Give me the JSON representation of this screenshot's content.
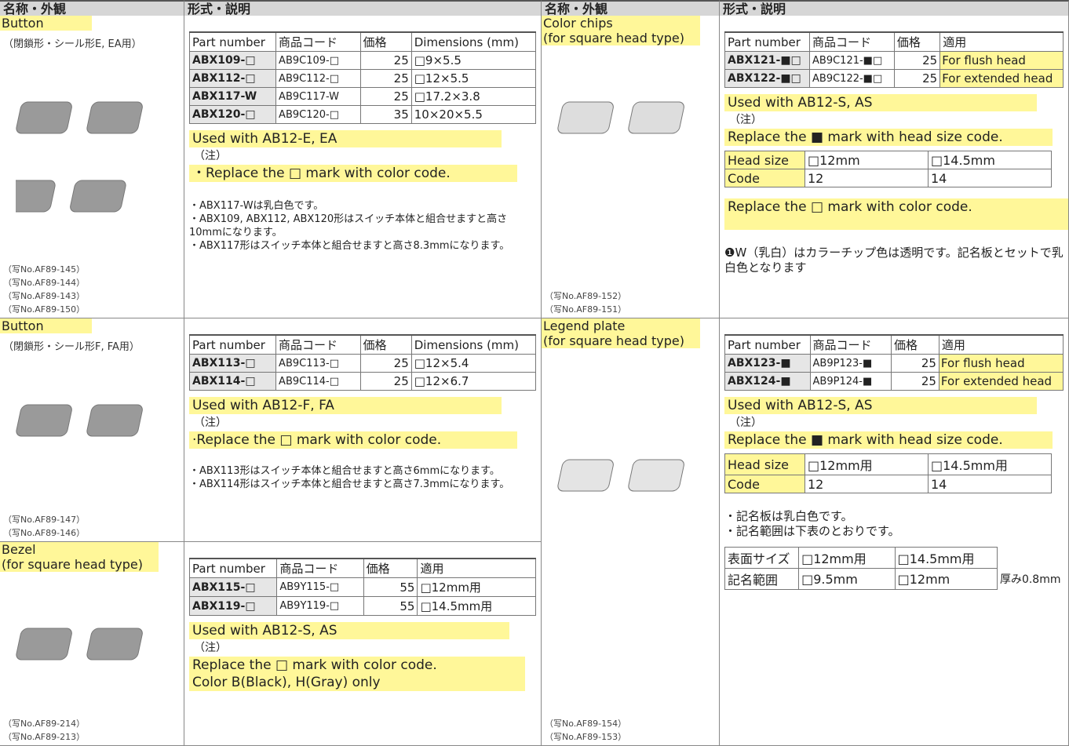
{
  "header": {
    "cols": [
      "名称・外観",
      "形式・説明",
      "名称・外観",
      "形式・説明"
    ]
  },
  "sections": [
    {
      "name": "Button",
      "subtitle": "（閉鎖形・シール形E, EA用）",
      "photos": [
        "（写No.AF89-145）",
        "（写No.AF89-144）",
        "（写No.AF89-143）",
        "（写No.AF89-150）"
      ],
      "table": {
        "header": [
          "Part number",
          "商品コード",
          "価格",
          "Dimensions (mm)"
        ],
        "rows": [
          [
            "ABX109-□",
            "AB9C109-□",
            25,
            "□9×5.5"
          ],
          [
            "ABX112-□",
            "AB9C112-□",
            25,
            "□12×5.5"
          ],
          [
            "ABX117-W",
            "AB9C117-W",
            25,
            "□17.2×3.8"
          ],
          [
            "ABX120-□",
            "AB9C120-□",
            35,
            "10×20×5.5"
          ]
        ]
      },
      "used_with": "Used with AB12-E, EA",
      "note_label": "（注）",
      "highlights": [
        "・Replace the □ mark with color code."
      ],
      "notes": [
        "・ABX117-Wは乳白色です。",
        "・ABX109, ABX112, ABX120形はスイッチ本体と組合せますと高さ10mmになります。",
        "・ABX117形はスイッチ本体と組合せますと高さ8.3mmになります。"
      ]
    },
    {
      "name": "Button",
      "subtitle": "（閉鎖形・シール形F, FA用）",
      "photos": [
        "（写No.AF89-147）",
        "（写No.AF89-146）"
      ],
      "table": {
        "header": [
          "Part number",
          "商品コード",
          "価格",
          "Dimensions (mm)"
        ],
        "rows": [
          [
            "ABX113-□",
            "AB9C113-□",
            25,
            "□12×5.4"
          ],
          [
            "ABX114-□",
            "AB9C114-□",
            25,
            "□12×6.7"
          ]
        ]
      },
      "used_with": "Used with AB12-F, FA",
      "note_label": "（注）",
      "highlights": [
        "·Replace the □ mark with color code."
      ],
      "notes": [
        "・ABX113形はスイッチ本体と組合せますと高さ6mmになります。",
        "・ABX114形はスイッチ本体と組合せますと高さ7.3mmになります。"
      ]
    },
    {
      "name": "Bezel",
      "subtitle": "(for square head type)",
      "photos": [
        "（写No.AF89-214）",
        "（写No.AF89-213）"
      ],
      "table": {
        "header": [
          "Part number",
          "商品コード",
          "価格",
          "適用"
        ],
        "rows": [
          [
            "ABX115-□",
            "AB9Y115-□",
            55,
            "□12mm用"
          ],
          [
            "ABX119-□",
            "AB9Y119-□",
            55,
            "□14.5mm用"
          ]
        ]
      },
      "used_with": "Used with AB12-S, AS",
      "note_label": "（注）",
      "highlights": [
        "Replace the □ mark with color code.",
        "Color B(Black), H(Gray) only"
      ]
    },
    {
      "name": "Color chips",
      "subtitle": "(for square head type)",
      "photos": [
        "（写No.AF89-152）",
        "（写No.AF89-151）"
      ],
      "table": {
        "header": [
          "Part number",
          "商品コード",
          "価格",
          "適用"
        ],
        "rows": [
          [
            "ABX121-■□",
            "AB9C121-■□",
            25,
            "For flush head"
          ],
          [
            "ABX122-■□",
            "AB9C122-■□",
            25,
            "For extended head"
          ]
        ]
      },
      "used_with": "Used with AB12-S, AS",
      "note_label": "（注）",
      "highlights": [
        "Replace the ■ mark with head size code."
      ],
      "size_table": [
        [
          "Head size",
          "□12mm",
          "□14.5mm"
        ],
        [
          "Code",
          "12",
          "14"
        ]
      ],
      "highlight2": "Replace the □ mark with color code.",
      "notes": [
        "❶W（乳白）はカラーチップ色は透明です。記名板とセットで乳白色となります"
      ]
    },
    {
      "name": "Legend plate",
      "subtitle": "(for square head type)",
      "photos": [
        "（写No.AF89-154）",
        "（写No.AF89-153）"
      ],
      "table": {
        "header": [
          "Part number",
          "商品コード",
          "価格",
          "適用"
        ],
        "rows": [
          [
            "ABX123-■",
            "AB9P123-■",
            25,
            "For flush head"
          ],
          [
            "ABX124-■",
            "AB9P124-■",
            25,
            "For extended head"
          ]
        ]
      },
      "used_with": "Used with AB12-S, AS",
      "note_label": "（注）",
      "highlights": [
        "Replace the ■ mark with head size code."
      ],
      "size_table": [
        [
          "Head size",
          "□12mm用",
          "□14.5mm用"
        ],
        [
          "Code",
          "12",
          "14"
        ]
      ],
      "notes": [
        "・記名板は乳白色です。",
        "・記名範囲は下表のとおりです。"
      ],
      "range_table": [
        [
          "表面サイズ",
          "□12mm用",
          "□14.5mm用"
        ],
        [
          "記名範囲",
          "□9.5mm",
          "□12mm"
        ]
      ],
      "range_note": "厚み0.8mm"
    }
  ]
}
